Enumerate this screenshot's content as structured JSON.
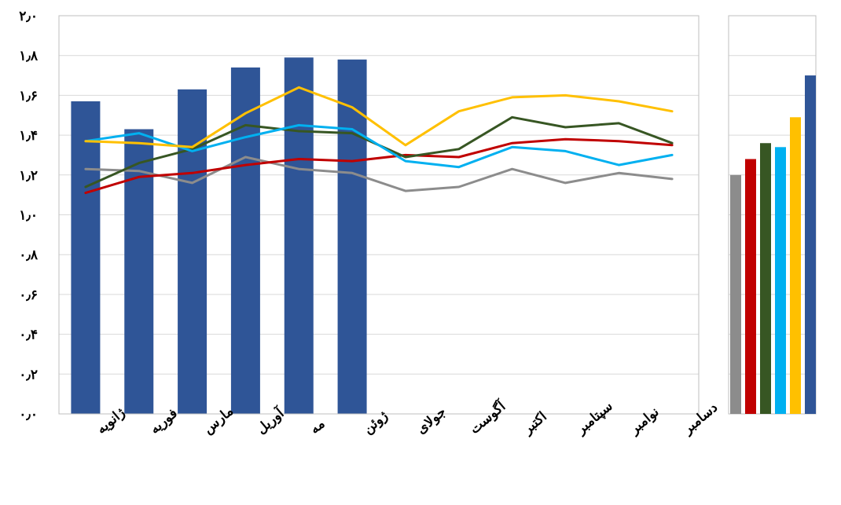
{
  "chart_data": {
    "type": "bar+line",
    "title": "",
    "xlabel": "",
    "ylabel": "",
    "ylim": [
      0,
      2
    ],
    "y_ticks": [
      "۰٫۰",
      "۰٫۲",
      "۰٫۴",
      "۰٫۶",
      "۰٫۸",
      "۱٫۰",
      "۱٫۲",
      "۱٫۴",
      "۱٫۶",
      "۱٫۸",
      "۲٫۰"
    ],
    "y_tick_values": [
      0,
      0.2,
      0.4,
      0.6,
      0.8,
      1.0,
      1.2,
      1.4,
      1.6,
      1.8,
      2.0
    ],
    "grid": true,
    "legend": "none",
    "categories": [
      "ژانویه",
      "فوریه",
      "مارس",
      "آوریل",
      "مه",
      "ژوئن",
      "جولای",
      "آگوست",
      "اکتبر",
      "سپتامبر",
      "نوامبر",
      "دسامبر"
    ],
    "bar_series": {
      "color": "#2F5597",
      "values": [
        1.57,
        1.43,
        1.63,
        1.74,
        1.79,
        1.78,
        null,
        null,
        null,
        null,
        null,
        null
      ]
    },
    "line_series": [
      {
        "color": "#8C8C8C",
        "values": [
          1.23,
          1.22,
          1.16,
          1.29,
          1.23,
          1.21,
          1.12,
          1.14,
          1.23,
          1.16,
          1.21,
          1.18
        ]
      },
      {
        "color": "#C00000",
        "values": [
          1.11,
          1.19,
          1.21,
          1.25,
          1.28,
          1.27,
          1.3,
          1.29,
          1.36,
          1.38,
          1.37,
          1.35
        ]
      },
      {
        "color": "#375623",
        "values": [
          1.14,
          1.26,
          1.33,
          1.45,
          1.42,
          1.41,
          1.29,
          1.33,
          1.49,
          1.44,
          1.46,
          1.36
        ]
      },
      {
        "color": "#00B0F0",
        "values": [
          1.37,
          1.41,
          1.32,
          1.39,
          1.45,
          1.43,
          1.27,
          1.24,
          1.34,
          1.32,
          1.25,
          1.3
        ]
      },
      {
        "color": "#FFC000",
        "values": [
          1.37,
          1.36,
          1.34,
          1.51,
          1.64,
          1.54,
          1.35,
          1.52,
          1.59,
          1.6,
          1.57,
          1.52
        ]
      }
    ],
    "side_bars": [
      {
        "color": "#8C8C8C",
        "value": 1.2
      },
      {
        "color": "#C00000",
        "value": 1.28
      },
      {
        "color": "#375623",
        "value": 1.36
      },
      {
        "color": "#00B0F0",
        "value": 1.34
      },
      {
        "color": "#FFC000",
        "value": 1.49
      },
      {
        "color": "#2F5597",
        "value": 1.7
      }
    ]
  }
}
